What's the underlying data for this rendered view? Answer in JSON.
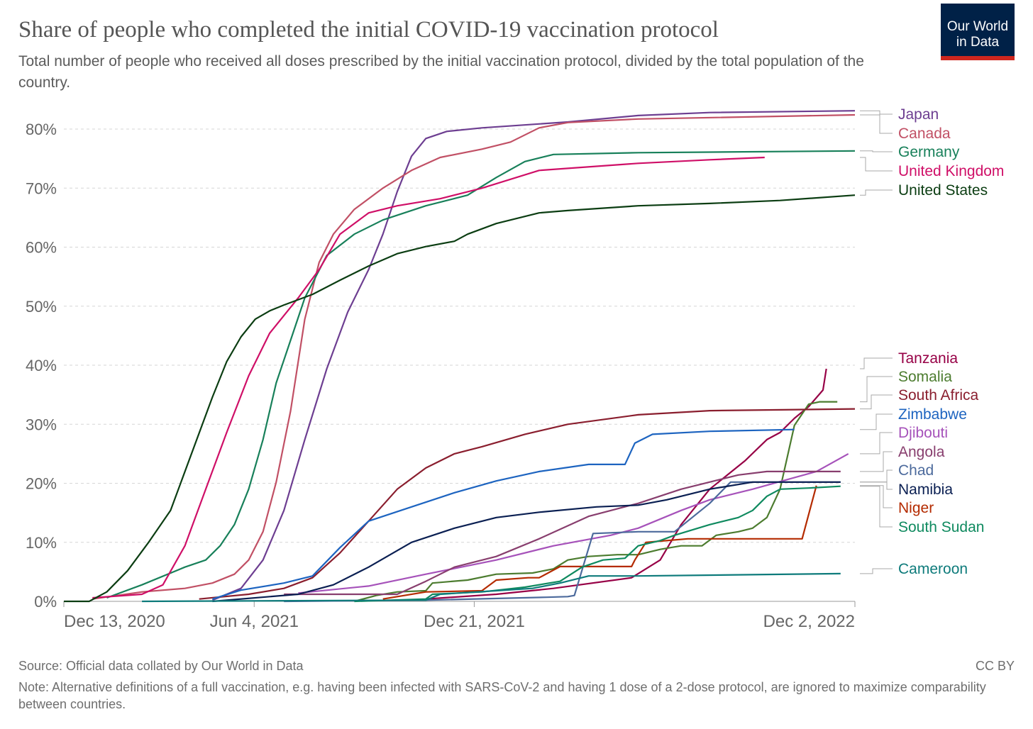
{
  "header": {
    "title": "Share of people who completed the initial COVID-19 vaccination protocol",
    "subtitle": "Total number of people who received all doses prescribed by the initial vaccination protocol, divided by the total population of the country.",
    "logo_line1": "Our World",
    "logo_line2": "in Data"
  },
  "footer": {
    "source": "Source: Official data collated by Our World in Data",
    "license": "CC BY",
    "note": "Note: Alternative definitions of a full vaccination, e.g. having been infected with SARS-CoV-2 and having 1 dose of a 2-dose protocol, are ignored to maximize comparability between countries."
  },
  "chart_data": {
    "type": "line",
    "title": "Share of people who completed the initial COVID-19 vaccination protocol",
    "xlabel": "",
    "ylabel": "",
    "x_unit": "days since Dec 13, 2020",
    "xlim": [
      0,
      719
    ],
    "ylim": [
      0,
      80
    ],
    "grid": true,
    "legend_placement": "right (line-end labels)",
    "x_ticks": [
      {
        "day": 0,
        "label": "Dec 13, 2020"
      },
      {
        "day": 173,
        "label": "Jun 4, 2021"
      },
      {
        "day": 373,
        "label": "Dec 21, 2021"
      },
      {
        "day": 719,
        "label": "Dec 2, 2022"
      }
    ],
    "y_ticks": [
      {
        "value": 0,
        "label": "0%"
      },
      {
        "value": 10,
        "label": "10%"
      },
      {
        "value": 20,
        "label": "20%"
      },
      {
        "value": 30,
        "label": "30%"
      },
      {
        "value": 40,
        "label": "40%"
      },
      {
        "value": 50,
        "label": "50%"
      },
      {
        "value": 60,
        "label": "60%"
      },
      {
        "value": 70,
        "label": "70%"
      },
      {
        "value": 80,
        "label": "80%"
      }
    ],
    "series": [
      {
        "name": "Japan",
        "color": "#6d3e91",
        "points": [
          [
            135,
            0.2
          ],
          [
            161,
            2.2
          ],
          [
            181,
            7
          ],
          [
            200,
            15.4
          ],
          [
            219,
            27.4
          ],
          [
            239,
            39.4
          ],
          [
            258,
            49
          ],
          [
            277,
            56.2
          ],
          [
            290,
            62.2
          ],
          [
            303,
            69.4
          ],
          [
            316,
            75.4
          ],
          [
            329,
            78.4
          ],
          [
            348,
            79.6
          ],
          [
            380,
            80.2
          ],
          [
            458,
            81.2
          ],
          [
            522,
            82.3
          ],
          [
            587,
            82.8
          ],
          [
            719,
            83.1
          ]
        ]
      },
      {
        "name": "Canada",
        "color": "#c15065",
        "points": [
          [
            26,
            0.4
          ],
          [
            71,
            1.6
          ],
          [
            110,
            2.2
          ],
          [
            135,
            3.1
          ],
          [
            155,
            4.6
          ],
          [
            168,
            7
          ],
          [
            181,
            11.8
          ],
          [
            193,
            20.2
          ],
          [
            206,
            32.2
          ],
          [
            219,
            47.8
          ],
          [
            232,
            57.4
          ],
          [
            245,
            62.2
          ],
          [
            264,
            66.4
          ],
          [
            290,
            70
          ],
          [
            316,
            73
          ],
          [
            342,
            75.2
          ],
          [
            380,
            76.6
          ],
          [
            406,
            77.8
          ],
          [
            432,
            80.2
          ],
          [
            458,
            81.1
          ],
          [
            522,
            81.7
          ],
          [
            719,
            82.4
          ]
        ]
      },
      {
        "name": "Germany",
        "color": "#18805a",
        "points": [
          [
            39,
            0.6
          ],
          [
            71,
            2.8
          ],
          [
            110,
            5.8
          ],
          [
            129,
            7
          ],
          [
            142,
            9.4
          ],
          [
            155,
            13
          ],
          [
            168,
            19
          ],
          [
            181,
            27.4
          ],
          [
            193,
            37
          ],
          [
            206,
            44.2
          ],
          [
            219,
            51.4
          ],
          [
            239,
            58.6
          ],
          [
            264,
            62.2
          ],
          [
            290,
            64.6
          ],
          [
            329,
            67
          ],
          [
            367,
            68.8
          ],
          [
            393,
            71.8
          ],
          [
            419,
            74.5
          ],
          [
            445,
            75.7
          ],
          [
            522,
            76
          ],
          [
            719,
            76.3
          ]
        ]
      },
      {
        "name": "United Kingdom",
        "color": "#cf0f67",
        "points": [
          [
            26,
            0.6
          ],
          [
            71,
            1.2
          ],
          [
            90,
            2.8
          ],
          [
            110,
            9.4
          ],
          [
            129,
            19
          ],
          [
            148,
            28.6
          ],
          [
            168,
            38.2
          ],
          [
            187,
            45.4
          ],
          [
            213,
            51.4
          ],
          [
            232,
            56.2
          ],
          [
            251,
            62.2
          ],
          [
            277,
            65.8
          ],
          [
            303,
            67
          ],
          [
            342,
            68.2
          ],
          [
            380,
            70
          ],
          [
            432,
            73
          ],
          [
            522,
            74.2
          ],
          [
            587,
            74.8
          ],
          [
            637,
            75.2
          ]
        ]
      },
      {
        "name": "United States",
        "color": "#0b3d12",
        "points": [
          [
            0,
            0
          ],
          [
            23,
            0
          ],
          [
            39,
            1.6
          ],
          [
            58,
            5.2
          ],
          [
            77,
            10
          ],
          [
            97,
            15.4
          ],
          [
            116,
            25
          ],
          [
            135,
            34.6
          ],
          [
            148,
            40.6
          ],
          [
            161,
            44.8
          ],
          [
            174,
            47.8
          ],
          [
            187,
            49.2
          ],
          [
            200,
            50.2
          ],
          [
            226,
            52
          ],
          [
            251,
            54.4
          ],
          [
            277,
            56.8
          ],
          [
            303,
            58.9
          ],
          [
            329,
            60.1
          ],
          [
            355,
            61
          ],
          [
            367,
            62.2
          ],
          [
            393,
            64
          ],
          [
            432,
            65.8
          ],
          [
            458,
            66.2
          ],
          [
            522,
            67
          ],
          [
            587,
            67.4
          ],
          [
            651,
            67.9
          ],
          [
            719,
            68.8
          ]
        ]
      },
      {
        "name": "Tanzania",
        "color": "#970046",
        "points": [
          [
            329,
            0.4
          ],
          [
            393,
            1.2
          ],
          [
            445,
            2.2
          ],
          [
            516,
            4
          ],
          [
            542,
            7
          ],
          [
            561,
            13
          ],
          [
            587,
            19
          ],
          [
            619,
            23.8
          ],
          [
            639,
            27.4
          ],
          [
            651,
            28.6
          ],
          [
            664,
            31
          ],
          [
            677,
            33
          ],
          [
            690,
            35.8
          ],
          [
            693,
            39.4
          ]
        ]
      },
      {
        "name": "Somalia",
        "color": "#4c7c2f",
        "points": [
          [
            264,
            0
          ],
          [
            284,
            1
          ],
          [
            303,
            1.6
          ],
          [
            329,
            1.8
          ],
          [
            335,
            3.1
          ],
          [
            367,
            3.6
          ],
          [
            393,
            4.6
          ],
          [
            426,
            4.8
          ],
          [
            445,
            5.5
          ],
          [
            458,
            7
          ],
          [
            477,
            7.6
          ],
          [
            503,
            7.9
          ],
          [
            522,
            7.9
          ],
          [
            542,
            8.8
          ],
          [
            561,
            9.4
          ],
          [
            580,
            9.4
          ],
          [
            593,
            11.2
          ],
          [
            613,
            11.8
          ],
          [
            626,
            12.4
          ],
          [
            639,
            14.2
          ],
          [
            651,
            19
          ],
          [
            664,
            29.8
          ],
          [
            677,
            33.4
          ],
          [
            687,
            33.8
          ],
          [
            703,
            33.8
          ]
        ]
      },
      {
        "name": "South Africa",
        "color": "#8a1e2e",
        "points": [
          [
            123,
            0.4
          ],
          [
            168,
            1.2
          ],
          [
            200,
            2.2
          ],
          [
            226,
            4
          ],
          [
            251,
            8.2
          ],
          [
            277,
            13.6
          ],
          [
            303,
            19
          ],
          [
            329,
            22.6
          ],
          [
            355,
            25
          ],
          [
            380,
            26.2
          ],
          [
            419,
            28.3
          ],
          [
            458,
            30
          ],
          [
            522,
            31.6
          ],
          [
            587,
            32.3
          ],
          [
            719,
            32.6
          ]
        ]
      },
      {
        "name": "Zimbabwe",
        "color": "#1d64c0",
        "points": [
          [
            135,
            0.4
          ],
          [
            161,
            1.9
          ],
          [
            200,
            3.1
          ],
          [
            226,
            4.3
          ],
          [
            251,
            9.1
          ],
          [
            277,
            13.6
          ],
          [
            316,
            16
          ],
          [
            355,
            18.4
          ],
          [
            393,
            20.4
          ],
          [
            432,
            22
          ],
          [
            477,
            23.2
          ],
          [
            510,
            23.2
          ],
          [
            519,
            26.8
          ],
          [
            535,
            28.3
          ],
          [
            587,
            28.8
          ],
          [
            664,
            29.1
          ]
        ]
      },
      {
        "name": "Djibouti",
        "color": "#a652ba",
        "points": [
          [
            213,
            1.4
          ],
          [
            277,
            2.6
          ],
          [
            329,
            4.6
          ],
          [
            393,
            7
          ],
          [
            445,
            9.4
          ],
          [
            497,
            11.2
          ],
          [
            522,
            12.4
          ],
          [
            561,
            15.4
          ],
          [
            587,
            17.2
          ],
          [
            626,
            19
          ],
          [
            684,
            22
          ],
          [
            713,
            25
          ]
        ]
      },
      {
        "name": "Angola",
        "color": "#883e6e",
        "points": [
          [
            200,
            1.2
          ],
          [
            303,
            1.2
          ],
          [
            329,
            3.4
          ],
          [
            355,
            5.8
          ],
          [
            393,
            7.6
          ],
          [
            432,
            10.6
          ],
          [
            477,
            14.4
          ],
          [
            522,
            16.6
          ],
          [
            561,
            19
          ],
          [
            613,
            21.4
          ],
          [
            639,
            22
          ],
          [
            706,
            22
          ]
        ]
      },
      {
        "name": "Chad",
        "color": "#4c6a9c",
        "points": [
          [
            200,
            0
          ],
          [
            329,
            0.2
          ],
          [
            439,
            0.7
          ],
          [
            458,
            0.8
          ],
          [
            464,
            1
          ],
          [
            481,
            11.5
          ],
          [
            522,
            11.8
          ],
          [
            555,
            11.8
          ],
          [
            587,
            16.6
          ],
          [
            606,
            20.2
          ],
          [
            706,
            20.2
          ]
        ]
      },
      {
        "name": "Namibia",
        "color": "#0a1f52",
        "points": [
          [
            135,
            0
          ],
          [
            213,
            1.2
          ],
          [
            245,
            2.8
          ],
          [
            277,
            5.8
          ],
          [
            316,
            10
          ],
          [
            355,
            12.4
          ],
          [
            393,
            14.2
          ],
          [
            432,
            15.1
          ],
          [
            484,
            16
          ],
          [
            522,
            16.3
          ],
          [
            548,
            17.2
          ],
          [
            587,
            19
          ],
          [
            626,
            20.2
          ],
          [
            651,
            20.2
          ],
          [
            706,
            20.2
          ]
        ]
      },
      {
        "name": "Niger",
        "color": "#b42b00",
        "points": [
          [
            290,
            0.4
          ],
          [
            329,
            1.6
          ],
          [
            380,
            1.8
          ],
          [
            393,
            3.6
          ],
          [
            422,
            4
          ],
          [
            432,
            4
          ],
          [
            451,
            5.9
          ],
          [
            516,
            5.9
          ],
          [
            519,
            7
          ],
          [
            529,
            10
          ],
          [
            567,
            10.6
          ],
          [
            671,
            10.6
          ],
          [
            684,
            19.6
          ]
        ]
      },
      {
        "name": "South Sudan",
        "color": "#0f8a5f",
        "points": [
          [
            264,
            0
          ],
          [
            329,
            0.4
          ],
          [
            335,
            1.2
          ],
          [
            380,
            1.6
          ],
          [
            419,
            2.4
          ],
          [
            451,
            3.4
          ],
          [
            471,
            5.8
          ],
          [
            490,
            7
          ],
          [
            510,
            7.3
          ],
          [
            522,
            9.4
          ],
          [
            542,
            10.3
          ],
          [
            555,
            11.2
          ],
          [
            587,
            13
          ],
          [
            613,
            14.2
          ],
          [
            626,
            15.4
          ],
          [
            639,
            17.8
          ],
          [
            651,
            19
          ],
          [
            677,
            19.2
          ],
          [
            706,
            19.5
          ]
        ]
      },
      {
        "name": "Cameroon",
        "color": "#0e7b7b",
        "points": [
          [
            71,
            0
          ],
          [
            329,
            0.2
          ],
          [
            342,
            1.2
          ],
          [
            393,
            1.8
          ],
          [
            426,
            2.2
          ],
          [
            451,
            3.1
          ],
          [
            477,
            4.3
          ],
          [
            522,
            4.3
          ],
          [
            706,
            4.7
          ]
        ]
      }
    ]
  }
}
